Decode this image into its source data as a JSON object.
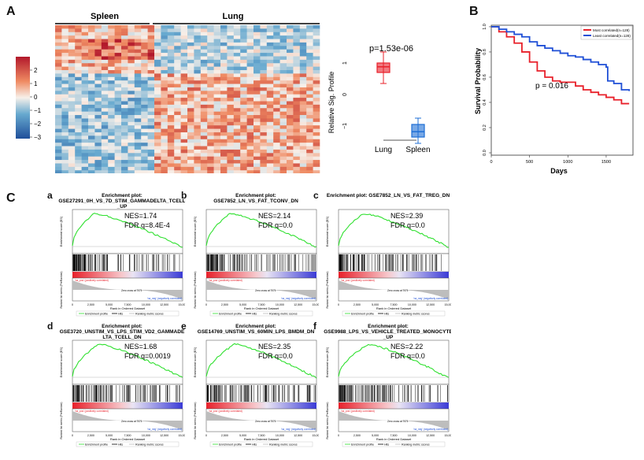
{
  "panels": {
    "A": "A",
    "B": "B",
    "C": "C"
  },
  "heatmap": {
    "groups": [
      "Spleen",
      "Lung"
    ],
    "colorbar_ticks": [
      "2",
      "1",
      "0",
      "−1",
      "−2",
      "−3"
    ]
  },
  "boxplot": {
    "pvalue": "p=1.53e-06",
    "ylabel": "Relative Sig. Profile",
    "yticks": [
      "1",
      "0",
      "−1"
    ],
    "categories": [
      "Lung",
      "Spleen"
    ],
    "colors": {
      "Lung": "#e8202a",
      "Spleen": "#1f6fd6"
    }
  },
  "survival": {
    "ylabel": "Survival Probability",
    "xlabel": "Days",
    "pvalue": "p = 0.016",
    "yticks": [
      "1.0",
      "0.8",
      "0.6",
      "0.4",
      "0.2",
      "0.0"
    ],
    "xticks": [
      "0",
      "500",
      "1000",
      "1500"
    ],
    "legend": [
      "Most correlated(n=128)",
      "Least correlated(n=128)"
    ],
    "colors": {
      "most": "#e8202a",
      "least": "#1f4fd6"
    }
  },
  "chart_data": [
    {
      "type": "line",
      "title": "",
      "xlabel": "Days",
      "ylabel": "Survival Probability",
      "xlim": [
        0,
        1850
      ],
      "ylim": [
        0,
        1
      ],
      "series": [
        {
          "name": "Most correlated(n=128)",
          "x": [
            0,
            100,
            200,
            300,
            400,
            500,
            600,
            700,
            800,
            900,
            1000,
            1100,
            1200,
            1300,
            1400,
            1500,
            1600,
            1700,
            1800
          ],
          "values": [
            1.0,
            0.96,
            0.92,
            0.87,
            0.8,
            0.72,
            0.65,
            0.6,
            0.57,
            0.56,
            0.56,
            0.53,
            0.5,
            0.48,
            0.46,
            0.44,
            0.42,
            0.39,
            0.39
          ]
        },
        {
          "name": "Least correlated(n=128)",
          "x": [
            0,
            100,
            200,
            300,
            400,
            500,
            600,
            700,
            800,
            900,
            1000,
            1100,
            1200,
            1300,
            1400,
            1500,
            1520,
            1600,
            1700,
            1800
          ],
          "values": [
            1.0,
            0.98,
            0.96,
            0.94,
            0.92,
            0.88,
            0.85,
            0.83,
            0.81,
            0.79,
            0.77,
            0.76,
            0.74,
            0.72,
            0.7,
            0.68,
            0.57,
            0.55,
            0.5,
            0.49
          ]
        }
      ]
    },
    {
      "type": "scatter",
      "title": "boxplot",
      "ylabel": "Relative Sig. Profile",
      "ylim": [
        -1.5,
        1.5
      ],
      "categories": [
        "Lung",
        "Spleen"
      ],
      "series": [
        {
          "name": "Lung",
          "values": {
            "min": 0.35,
            "q1": 0.7,
            "median": 0.88,
            "q3": 1.0,
            "max": 1.35
          }
        },
        {
          "name": "Spleen",
          "values": {
            "min": -1.55,
            "q1": -1.35,
            "median": -1.18,
            "q3": -0.95,
            "max": -0.75
          }
        }
      ]
    }
  ],
  "gsea": [
    {
      "letter": "a",
      "title1": "Enrichment plot:",
      "title2": "GSE27291_0H_VS_7D_STIM_GAMMADELTA_TCELL",
      "title3": "_UP",
      "nes": "NES=1.74",
      "fdr": "FDR q=8.4E-4"
    },
    {
      "letter": "b",
      "title1": "Enrichment plot:",
      "title2": "GSE7852_LN_VS_FAT_TCONV_DN",
      "title3": "",
      "nes": "NES=2.14",
      "fdr": "FDR q=0.0"
    },
    {
      "letter": "c",
      "title1": "Enrichment plot: GSE7852_LN_VS_FAT_TREG_DN",
      "title2": "",
      "title3": "",
      "nes": "NES=2.39",
      "fdr": "FDR q=0.0"
    },
    {
      "letter": "d",
      "title1": "Enrichment plot:",
      "title2": "GSE3720_UNSTIM_VS_LPS_STIM_VD2_GAMMADE",
      "title3": "LTA_TCELL_DN",
      "nes": "NES=1.68",
      "fdr": "FDR q=0.0019"
    },
    {
      "letter": "e",
      "title1": "Enrichment plot:",
      "title2": "GSE14769_UNSTIM_VS_60MIN_LPS_BMDM_DN",
      "title3": "",
      "nes": "NES=2.35",
      "fdr": "FDR q=0.0"
    },
    {
      "letter": "f",
      "title1": "Enrichment plot:",
      "title2": "GSE9988_LPS_VS_VEHICLE_TREATED_MONOCYTE",
      "title3": "_UP",
      "nes": "NES=2.22",
      "fdr": "FDR q=0.0"
    }
  ],
  "gsea_common": {
    "es_label": "Enrichment score (ES)",
    "rank_label": "Ranked list metric (PreRanked)",
    "xaxis": "Rank in Ordered Dataset",
    "xticks": [
      "0",
      "2,500",
      "5,000",
      "7,500",
      "10,000",
      "12,500",
      "15,000"
    ],
    "na_pos": "'na_pos' (positively correlated)",
    "na_neg": "'na_neg' (negatively correlated)",
    "zero_cross": "Zero cross at 7071",
    "legend_profile": "Enrichment profile",
    "legend_hits": "Hits",
    "legend_metric": "Ranking metric scores"
  }
}
